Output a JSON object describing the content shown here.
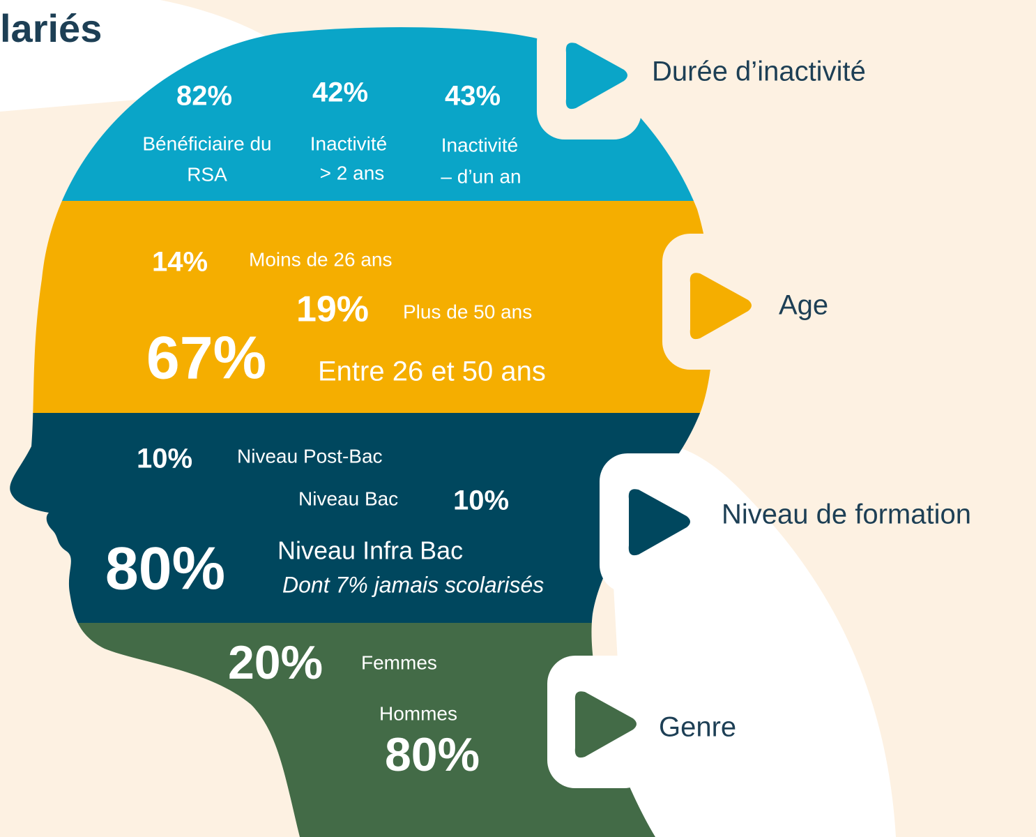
{
  "title": "lariés",
  "sections": [
    {
      "label": "Durée d’inactivité",
      "items": [
        {
          "value": "82%",
          "lines": [
            "Bénéficiaire du",
            "RSA"
          ]
        },
        {
          "value": "42%",
          "lines": [
            "Inactivité",
            "> 2 ans"
          ]
        },
        {
          "value": "43%",
          "lines": [
            "Inactivité",
            "– d’un an"
          ]
        }
      ]
    },
    {
      "label": "Age",
      "items": [
        {
          "value": "14%",
          "lines": [
            "Moins de 26 ans"
          ]
        },
        {
          "value": "19%",
          "lines": [
            "Plus de 50 ans"
          ]
        },
        {
          "value": "67%",
          "lines": [
            "Entre 26 et 50 ans"
          ]
        }
      ]
    },
    {
      "label": "Niveau de formation",
      "items": [
        {
          "value": "10%",
          "lines": [
            "Niveau Post-Bac"
          ]
        },
        {
          "value": "10%",
          "lines": [
            "Niveau Bac"
          ]
        },
        {
          "value": "80%",
          "lines": [
            "Niveau Infra Bac"
          ],
          "note": "Dont 7% jamais scolarisés"
        }
      ]
    },
    {
      "label": "Genre",
      "items": [
        {
          "value": "20%",
          "lines": [
            "Femmes"
          ]
        },
        {
          "value": "80%",
          "lines": [
            "Hommes"
          ]
        }
      ]
    }
  ]
}
